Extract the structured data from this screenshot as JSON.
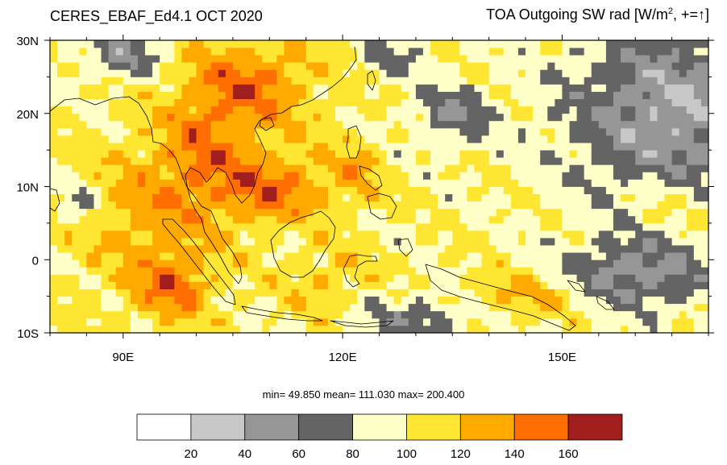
{
  "header": {
    "dataset": "CERES_EBAF_Ed4.1 OCT 2020",
    "variable": "TOA Outgoing SW rad [W/m",
    "variable_sup": "2",
    "variable_tail": ", +=",
    "arrow_glyph": "↑",
    "bracket_close": "]"
  },
  "map": {
    "lon_range": [
      80,
      170
    ],
    "lat_range": [
      -10,
      30
    ],
    "lon_ticks": [
      {
        "value": 90,
        "label": "90E"
      },
      {
        "value": 120,
        "label": "120E"
      },
      {
        "value": 150,
        "label": "150E"
      }
    ],
    "lat_ticks": [
      {
        "value": 30,
        "label": "30N"
      },
      {
        "value": 20,
        "label": "20N"
      },
      {
        "value": 10,
        "label": "10N"
      },
      {
        "value": 0,
        "label": "0"
      },
      {
        "value": -10,
        "label": "10S"
      }
    ],
    "grid_resolution_deg": 1,
    "coastline_color": "#000000"
  },
  "stats": {
    "text": "min=  49.850  mean= 111.030  max= 200.400"
  },
  "colorbar": {
    "bins": [
      {
        "color": "#ffffff",
        "lower": null,
        "upper": 20
      },
      {
        "color": "#c8c8c8",
        "lower": 20,
        "upper": 40
      },
      {
        "color": "#969696",
        "lower": 40,
        "upper": 60
      },
      {
        "color": "#646464",
        "lower": 60,
        "upper": 80
      },
      {
        "color": "#ffffc8",
        "lower": 80,
        "upper": 100
      },
      {
        "color": "#ffe632",
        "lower": 100,
        "upper": 120
      },
      {
        "color": "#ffaa00",
        "lower": 120,
        "upper": 140
      },
      {
        "color": "#ff6e00",
        "lower": 140,
        "upper": 160
      },
      {
        "color": "#a01e1e",
        "lower": 160,
        "upper": null
      }
    ],
    "labels": [
      "20",
      "40",
      "60",
      "80",
      "100",
      "120",
      "140",
      "160"
    ]
  }
}
